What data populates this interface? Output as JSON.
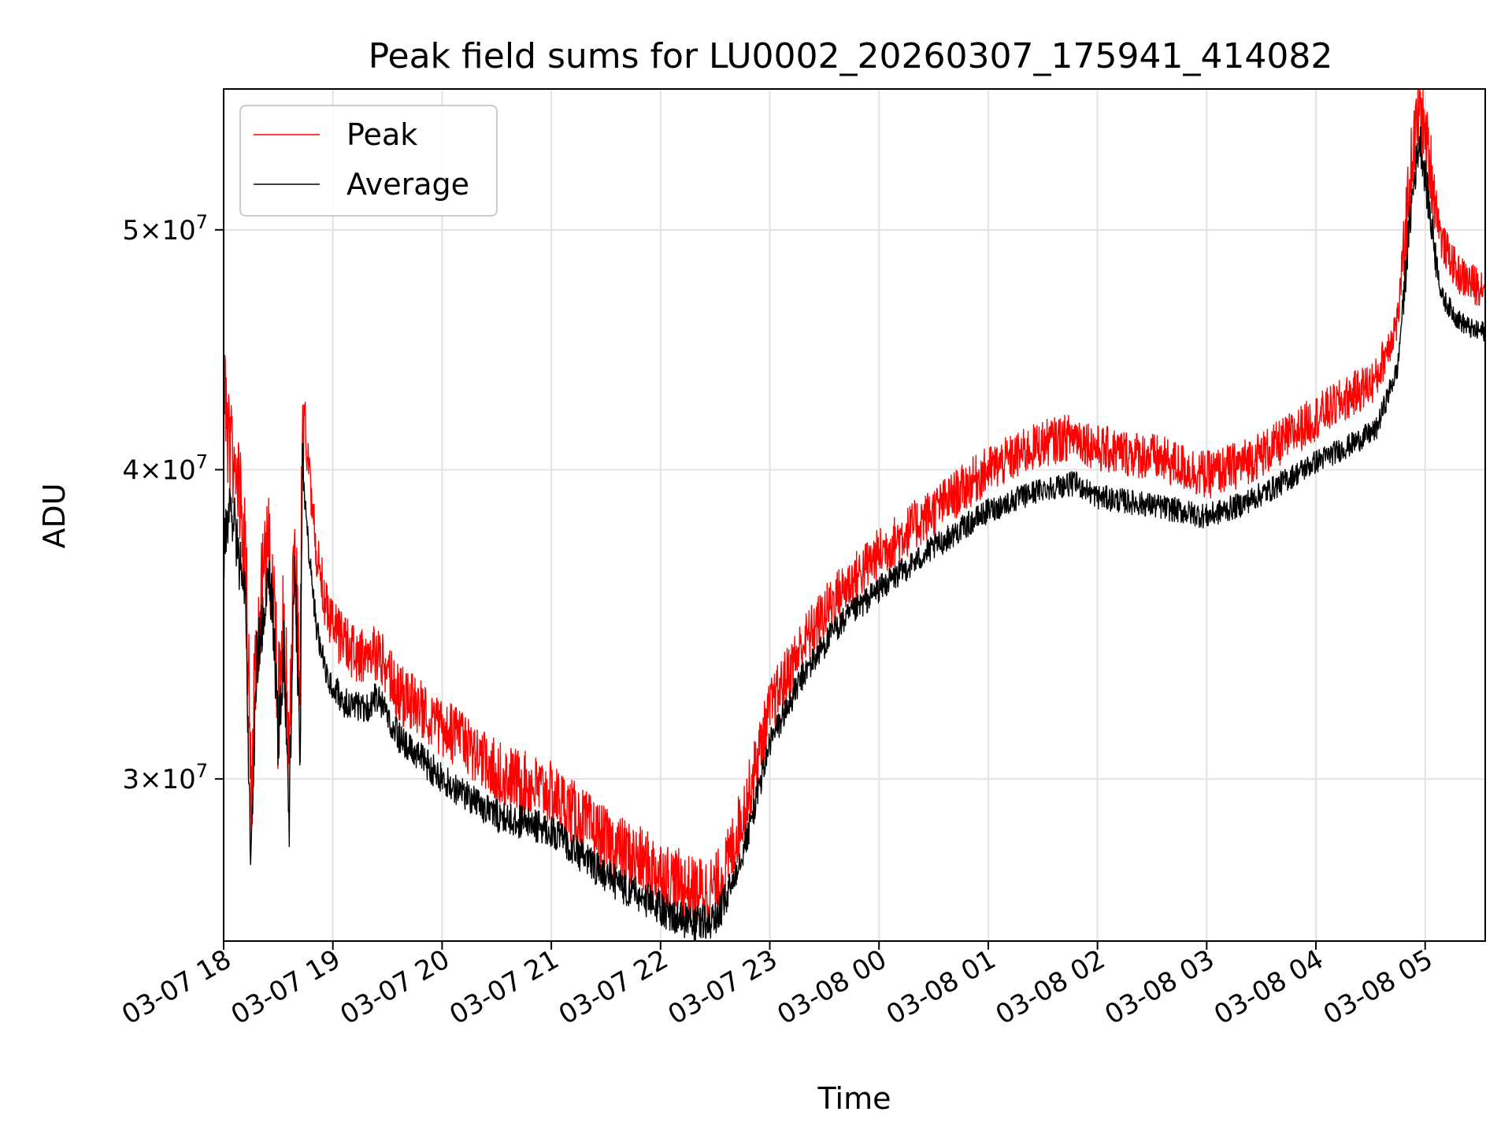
{
  "chart_data": {
    "type": "line",
    "title": "Peak field sums for LU0002_20260307_175941_414082",
    "xlabel": "Time",
    "ylabel": "ADU",
    "y_scale": "log",
    "grid": true,
    "legend_position": "top-left",
    "x_range_hours": [
      0,
      11.55
    ],
    "ylim": [
      25800000,
      57000000
    ],
    "x_ticks": [
      {
        "hour": 0,
        "label": "03-07 18"
      },
      {
        "hour": 1,
        "label": "03-07 19"
      },
      {
        "hour": 2,
        "label": "03-07 20"
      },
      {
        "hour": 3,
        "label": "03-07 21"
      },
      {
        "hour": 4,
        "label": "03-07 22"
      },
      {
        "hour": 5,
        "label": "03-07 23"
      },
      {
        "hour": 6,
        "label": "03-08 00"
      },
      {
        "hour": 7,
        "label": "03-08 01"
      },
      {
        "hour": 8,
        "label": "03-08 02"
      },
      {
        "hour": 9,
        "label": "03-08 03"
      },
      {
        "hour": 10,
        "label": "03-08 04"
      },
      {
        "hour": 11,
        "label": "03-08 05"
      }
    ],
    "y_ticks": [
      {
        "value": 30000000,
        "mantissa": "3",
        "exponent": "7"
      },
      {
        "value": 40000000,
        "mantissa": "4",
        "exponent": "7"
      },
      {
        "value": 50000000,
        "mantissa": "5",
        "exponent": "7"
      }
    ],
    "series": [
      {
        "name": "Peak",
        "color": "#ff0000",
        "noise": 900000,
        "points": [
          [
            0.0,
            43000000
          ],
          [
            0.05,
            41000000
          ],
          [
            0.1,
            40000000
          ],
          [
            0.15,
            39000000
          ],
          [
            0.2,
            37000000
          ],
          [
            0.25,
            29500000
          ],
          [
            0.3,
            34500000
          ],
          [
            0.35,
            35500000
          ],
          [
            0.4,
            37500000
          ],
          [
            0.45,
            36000000
          ],
          [
            0.5,
            32000000
          ],
          [
            0.55,
            35000000
          ],
          [
            0.6,
            30000000
          ],
          [
            0.65,
            38000000
          ],
          [
            0.7,
            32000000
          ],
          [
            0.72,
            42500000
          ],
          [
            0.78,
            40000000
          ],
          [
            0.85,
            37000000
          ],
          [
            0.95,
            35000000
          ],
          [
            1.1,
            34000000
          ],
          [
            1.3,
            33500000
          ],
          [
            1.4,
            33800000
          ],
          [
            1.6,
            32500000
          ],
          [
            2.0,
            31500000
          ],
          [
            2.5,
            30200000
          ],
          [
            3.0,
            29600000
          ],
          [
            3.5,
            28300000
          ],
          [
            4.0,
            27500000
          ],
          [
            4.3,
            27000000
          ],
          [
            4.5,
            27100000
          ],
          [
            4.6,
            27600000
          ],
          [
            4.8,
            29500000
          ],
          [
            5.0,
            32000000
          ],
          [
            5.3,
            34000000
          ],
          [
            5.6,
            35500000
          ],
          [
            6.0,
            37000000
          ],
          [
            6.5,
            38500000
          ],
          [
            7.0,
            40000000
          ],
          [
            7.5,
            41000000
          ],
          [
            7.8,
            41300000
          ],
          [
            8.0,
            40800000
          ],
          [
            8.5,
            40500000
          ],
          [
            9.0,
            39800000
          ],
          [
            9.3,
            40200000
          ],
          [
            9.6,
            40800000
          ],
          [
            10.0,
            42000000
          ],
          [
            10.3,
            42800000
          ],
          [
            10.55,
            43500000
          ],
          [
            10.75,
            46000000
          ],
          [
            10.88,
            53500000
          ],
          [
            10.95,
            56000000
          ],
          [
            11.05,
            53000000
          ],
          [
            11.15,
            49500000
          ],
          [
            11.3,
            48000000
          ],
          [
            11.45,
            47500000
          ],
          [
            11.55,
            47500000
          ]
        ]
      },
      {
        "name": "Average",
        "color": "#000000",
        "noise": 450000,
        "points": [
          [
            0.0,
            37000000
          ],
          [
            0.05,
            38500000
          ],
          [
            0.1,
            38000000
          ],
          [
            0.15,
            36500000
          ],
          [
            0.2,
            35500000
          ],
          [
            0.25,
            27000000
          ],
          [
            0.3,
            33500000
          ],
          [
            0.35,
            34500000
          ],
          [
            0.4,
            36500000
          ],
          [
            0.45,
            35000000
          ],
          [
            0.5,
            31000000
          ],
          [
            0.55,
            34000000
          ],
          [
            0.6,
            29000000
          ],
          [
            0.65,
            37000000
          ],
          [
            0.7,
            30000000
          ],
          [
            0.72,
            40500000
          ],
          [
            0.78,
            37000000
          ],
          [
            0.85,
            34500000
          ],
          [
            0.95,
            33000000
          ],
          [
            1.1,
            32200000
          ],
          [
            1.3,
            32000000
          ],
          [
            1.4,
            32400000
          ],
          [
            1.6,
            31200000
          ],
          [
            2.0,
            30000000
          ],
          [
            2.5,
            29000000
          ],
          [
            3.0,
            28600000
          ],
          [
            3.5,
            27400000
          ],
          [
            4.0,
            26600000
          ],
          [
            4.3,
            26200000
          ],
          [
            4.5,
            26300000
          ],
          [
            4.6,
            26800000
          ],
          [
            4.8,
            28500000
          ],
          [
            5.0,
            31000000
          ],
          [
            5.3,
            33000000
          ],
          [
            5.6,
            34500000
          ],
          [
            6.0,
            35800000
          ],
          [
            6.5,
            37200000
          ],
          [
            7.0,
            38500000
          ],
          [
            7.5,
            39300000
          ],
          [
            7.8,
            39500000
          ],
          [
            8.0,
            39000000
          ],
          [
            8.5,
            38700000
          ],
          [
            9.0,
            38300000
          ],
          [
            9.3,
            38700000
          ],
          [
            9.6,
            39300000
          ],
          [
            10.0,
            40300000
          ],
          [
            10.3,
            40900000
          ],
          [
            10.55,
            41500000
          ],
          [
            10.75,
            44000000
          ],
          [
            10.88,
            51500000
          ],
          [
            10.95,
            54500000
          ],
          [
            11.05,
            50500000
          ],
          [
            11.15,
            47000000
          ],
          [
            11.3,
            46000000
          ],
          [
            11.45,
            45500000
          ],
          [
            11.55,
            45500000
          ]
        ]
      }
    ]
  }
}
